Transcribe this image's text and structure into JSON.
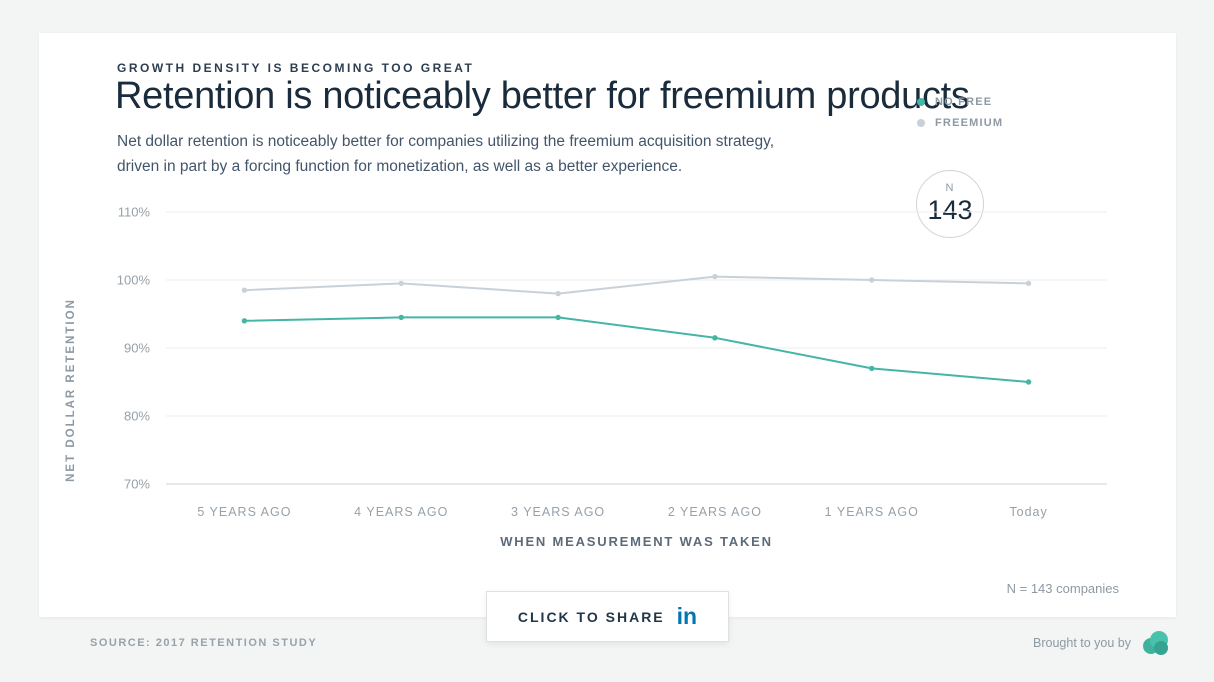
{
  "header": {
    "eyebrow": "GROWTH DENSITY IS BECOMING TOO GREAT",
    "title": "Retention is noticeably better for freemium products",
    "subtitle_lines": [
      "Net dollar retention is noticeably better for companies utilizing the freemium acquisition strategy,",
      "driven in part by a forcing function for monetization, as well as a better experience."
    ]
  },
  "badge": {
    "label": "N",
    "value": "143"
  },
  "chart_data": {
    "type": "line",
    "categories": [
      "5 YEARS AGO",
      "4 YEARS AGO",
      "3 YEARS AGO",
      "2 YEARS AGO",
      "1 YEARS AGO",
      "Today"
    ],
    "series": [
      {
        "name": "NO FREE",
        "color": "#45b5a6",
        "values": [
          94,
          94.5,
          94.5,
          91.5,
          87,
          85
        ]
      },
      {
        "name": "FREEMIUM",
        "color": "#c9d1d8",
        "values": [
          98.5,
          99.5,
          98,
          100.5,
          100,
          99.5
        ]
      }
    ],
    "title": "Retention is noticeably better for freemium products",
    "xlabel": "WHEN MEASUREMENT WAS TAKEN",
    "ylabel": "NET DOLLAR RETENTION",
    "yticks": [
      "110%",
      "100%",
      "90%",
      "80%",
      "70%"
    ],
    "ylim": [
      70,
      110
    ],
    "grid": true,
    "legend_position": "top-right"
  },
  "footer": {
    "sample_note": "N = 143 companies",
    "share_button_label": "CLICK TO SHARE",
    "linkedin_glyph": "in",
    "source": "SOURCE: 2017 RETENTION  STUDY",
    "brought_by": "Brought to you by"
  },
  "colors": {
    "accent_teal": "#45b5a6",
    "series_gray": "#c9d1d8",
    "linkedin_blue": "#0077b5",
    "heading_navy": "#1a2b3c"
  }
}
